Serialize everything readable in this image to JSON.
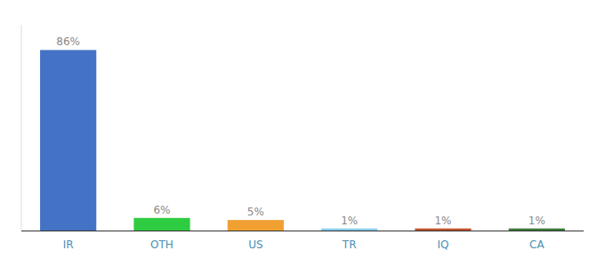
{
  "chart_data": {
    "type": "bar",
    "categories": [
      "IR",
      "OTH",
      "US",
      "TR",
      "IQ",
      "CA"
    ],
    "values": [
      86,
      6,
      5,
      1,
      1,
      1
    ],
    "value_labels": [
      "86%",
      "6%",
      "5%",
      "1%",
      "1%",
      "1%"
    ],
    "colors": [
      "#4472C4",
      "#2ECC40",
      "#F0A030",
      "#87CEEB",
      "#C0522A",
      "#3A7A3A"
    ],
    "ylim": [
      0,
      98
    ],
    "data_labels": true,
    "tick_labels": "x",
    "grid": false
  }
}
